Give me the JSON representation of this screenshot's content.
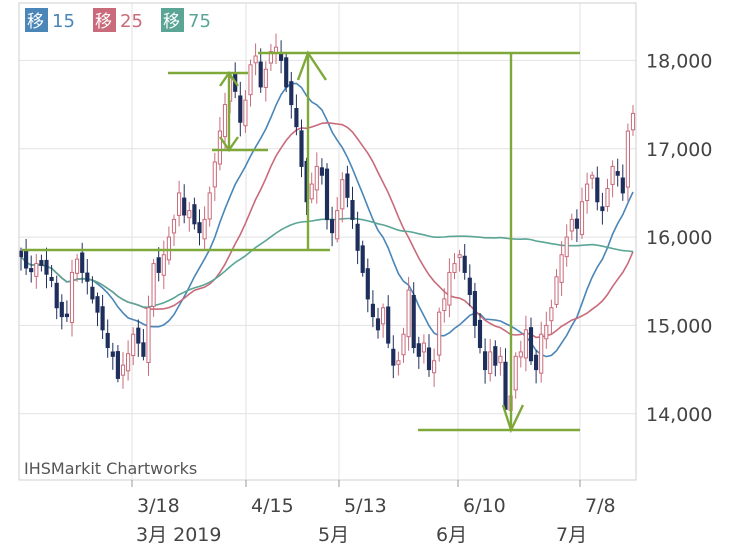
{
  "chart_data": {
    "type": "candlestick",
    "legend": [
      {
        "marker": "移",
        "label": "15",
        "color": "#4a86b8"
      },
      {
        "marker": "移",
        "label": "25",
        "color": "#c96b7a"
      },
      {
        "marker": "移",
        "label": "75",
        "color": "#5aa596"
      }
    ],
    "watermark": "IHSMarkit Chartworks",
    "y_ticks": [
      "18,000",
      "17,000",
      "16,000",
      "15,000",
      "14,000"
    ],
    "y_values": [
      18000,
      17000,
      16000,
      15000,
      14000
    ],
    "ylim": [
      13250,
      18650
    ],
    "x_ticks": [
      {
        "label": "3/18",
        "month": "3月 2019"
      },
      {
        "label": "4/15",
        "month": ""
      },
      {
        "label": "5/13",
        "month": "5月"
      },
      {
        "label": "6/10",
        "month": "6月"
      },
      {
        "label": "7/8",
        "month": "7月"
      }
    ],
    "month_labels": [
      {
        "label": "3月 2019"
      },
      {
        "label": "5月"
      },
      {
        "label": "6月"
      },
      {
        "label": "7月"
      }
    ],
    "colors": {
      "up": "#c96b7a",
      "down": "#1e2f5c",
      "annotation": "#7ea83a",
      "grid": "#e2e2e2"
    },
    "closes": [
      15780,
      15650,
      15620,
      15700,
      15680,
      15580,
      15520,
      15200,
      15100,
      15100,
      15600,
      15750,
      15600,
      15500,
      15300,
      15150,
      14950,
      14750,
      14650,
      14400,
      14550,
      14680,
      14900,
      14800,
      14650,
      15200,
      15700,
      15600,
      15800,
      16000,
      16200,
      16500,
      16250,
      16300,
      16150,
      16050,
      16200,
      16500,
      16850,
      17200,
      17500,
      17800,
      17650,
      17300,
      17550,
      17950,
      18050,
      17700,
      17900,
      18100,
      18150,
      18000,
      17700,
      17500,
      17250,
      16800,
      16400,
      16600,
      16800,
      16700,
      16200,
      16050,
      16300,
      16650,
      16450,
      16200,
      15850,
      15600,
      15300,
      15100,
      14950,
      15200,
      14800,
      14550,
      14600,
      14900,
      15400,
      14750,
      14650,
      14800,
      14500,
      14600,
      15150,
      15300,
      15600,
      15700,
      15800,
      15600,
      15350,
      15000,
      14750,
      14500,
      14700,
      14550,
      14650,
      14050,
      14200,
      14650,
      14700,
      14950,
      14600,
      14500,
      14900,
      15000,
      15200,
      15550,
      15800,
      16000,
      16200,
      16100,
      16400,
      16600,
      16700,
      16400,
      16300,
      16550,
      16800,
      16700,
      16500,
      17200,
      17400
    ]
  }
}
